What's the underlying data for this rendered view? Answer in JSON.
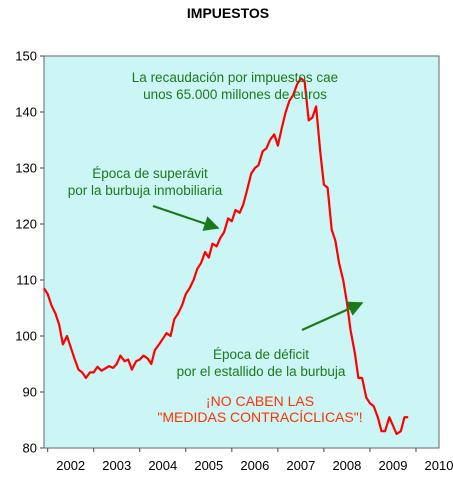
{
  "chart_data": {
    "type": "line",
    "title": "IMPUESTOS",
    "xlabel": "",
    "ylabel": "",
    "ylim": [
      80,
      150
    ],
    "yticks": [
      "80",
      "90",
      "100",
      "110",
      "120",
      "130",
      "140",
      "150"
    ],
    "xticks": [
      "2002",
      "2003",
      "2004",
      "2005",
      "2006",
      "2007",
      "2008",
      "2009",
      "2010"
    ],
    "xlim": [
      2001.92,
      2010.5
    ],
    "grid": false,
    "plot_background": "#ccf5f5",
    "series": [
      {
        "color": "#ff0000",
        "x": [
          2001.92,
          2002.0,
          2002.08,
          2002.17,
          2002.25,
          2002.33,
          2002.42,
          2002.5,
          2002.58,
          2002.67,
          2002.75,
          2002.83,
          2002.92,
          2003.0,
          2003.08,
          2003.17,
          2003.25,
          2003.33,
          2003.42,
          2003.5,
          2003.58,
          2003.67,
          2003.75,
          2003.83,
          2003.92,
          2004.0,
          2004.08,
          2004.17,
          2004.25,
          2004.33,
          2004.42,
          2004.5,
          2004.58,
          2004.67,
          2004.75,
          2004.83,
          2004.92,
          2005.0,
          2005.08,
          2005.17,
          2005.25,
          2005.33,
          2005.42,
          2005.5,
          2005.58,
          2005.67,
          2005.75,
          2005.83,
          2005.92,
          2006.0,
          2006.08,
          2006.17,
          2006.25,
          2006.33,
          2006.42,
          2006.5,
          2006.58,
          2006.67,
          2006.75,
          2006.83,
          2006.92,
          2007.0,
          2007.08,
          2007.17,
          2007.25,
          2007.33,
          2007.42,
          2007.5,
          2007.58,
          2007.67,
          2007.75,
          2007.83,
          2007.92,
          2008.0,
          2008.08,
          2008.17,
          2008.25,
          2008.33,
          2008.42,
          2008.5,
          2008.58,
          2008.67,
          2008.75,
          2008.83,
          2008.92,
          2009.0,
          2009.08,
          2009.17,
          2009.25,
          2009.33,
          2009.42,
          2009.5,
          2009.58,
          2009.67,
          2009.75,
          2009.83
        ],
        "y": [
          108.5,
          107.5,
          105.5,
          104.0,
          102.0,
          98.5,
          100.0,
          98.0,
          96.0,
          94.0,
          93.5,
          92.5,
          93.5,
          93.5,
          94.5,
          93.8,
          94.2,
          94.6,
          94.3,
          95.0,
          96.5,
          95.5,
          95.8,
          94.0,
          95.5,
          95.8,
          96.5,
          96.0,
          95.0,
          97.5,
          98.5,
          99.5,
          100.5,
          100.0,
          103.0,
          104.0,
          105.5,
          107.5,
          108.5,
          110.0,
          112.0,
          113.0,
          115.0,
          114.0,
          116.5,
          116.0,
          117.5,
          118.5,
          121.0,
          120.5,
          122.5,
          122.0,
          123.5,
          126.0,
          129.0,
          130.0,
          130.5,
          133.0,
          133.5,
          135.0,
          136.0,
          134.0,
          137.0,
          140.0,
          142.0,
          143.0,
          145.0,
          146.0,
          145.5,
          138.5,
          139.0,
          141.0,
          133.0,
          127.0,
          126.5,
          119.0,
          117.0,
          113.0,
          110.0,
          106.0,
          101.0,
          97.0,
          92.5,
          92.5,
          89.0,
          88.0,
          87.5,
          85.5,
          83.0,
          83.0,
          85.5,
          84.0,
          82.5,
          83.0,
          85.5,
          85.5
        ]
      }
    ],
    "annotations": {
      "recaudacion": [
        "La recaudación por impuestos cae",
        "unos 65.000 millones de euros"
      ],
      "superavit": [
        "Época de superávit",
        "por la burbuja inmobiliaria"
      ],
      "deficit": [
        "Época de déficit",
        "por el estallido de la burbuja"
      ],
      "contraciclicas": [
        "¡NO CABEN LAS",
        "\"MEDIDAS CONTRACÍCLICAS\"!"
      ]
    },
    "colors": {
      "line": "#ff0000",
      "note_green": "#1a7a1a",
      "note_red": "#ff3300",
      "arrow": "#1a7a1a"
    }
  }
}
